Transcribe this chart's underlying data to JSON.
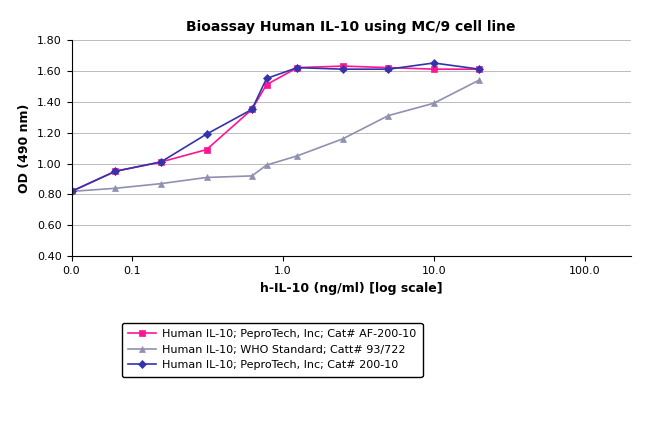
{
  "title": "Bioassay Human IL-10 using MC/9 cell line",
  "xlabel": "h-IL-10 (ng/ml) [log scale]",
  "ylabel": "OD (490 nm)",
  "ylim": [
    0.4,
    1.8
  ],
  "yticks": [
    0.4,
    0.6,
    0.8,
    1.0,
    1.2,
    1.4,
    1.6,
    1.8
  ],
  "xticks_pos": [
    0.04,
    0.1,
    1.0,
    10.0,
    100.0
  ],
  "xticks_labels": [
    "0.0",
    "0.1",
    "1.0",
    "10.0",
    "100.0"
  ],
  "xlim": [
    0.04,
    200.0
  ],
  "series": [
    {
      "label": "Human IL-10; PeproTech, Inc; Cat# AF-200-10",
      "color": "#FF1493",
      "marker": "s",
      "markersize": 5,
      "x": [
        0.04,
        0.078,
        0.156,
        0.313,
        0.625,
        0.781,
        1.25,
        2.5,
        5.0,
        10.0,
        20.0
      ],
      "y": [
        0.82,
        0.95,
        1.01,
        1.09,
        1.35,
        1.51,
        1.62,
        1.63,
        1.62,
        1.61,
        1.61
      ]
    },
    {
      "label": "Human IL-10; WHO Standard; Catt# 93/722",
      "color": "#9090B0",
      "marker": "^",
      "markersize": 5,
      "x": [
        0.04,
        0.078,
        0.156,
        0.313,
        0.625,
        0.781,
        1.25,
        2.5,
        5.0,
        10.0,
        20.0
      ],
      "y": [
        0.82,
        0.84,
        0.87,
        0.91,
        0.92,
        0.99,
        1.05,
        1.16,
        1.31,
        1.39,
        1.54
      ]
    },
    {
      "label": "Human IL-10; PeproTech, Inc; Cat# 200-10",
      "color": "#3333AA",
      "marker": "D",
      "markersize": 4,
      "x": [
        0.04,
        0.078,
        0.156,
        0.313,
        0.625,
        0.781,
        1.25,
        2.5,
        5.0,
        10.0,
        20.0
      ],
      "y": [
        0.82,
        0.95,
        1.01,
        1.19,
        1.35,
        1.55,
        1.62,
        1.61,
        1.61,
        1.65,
        1.61
      ]
    }
  ],
  "background_color": "#FFFFFF",
  "grid_color": "#BBBBBB",
  "title_fontsize": 10,
  "axis_fontsize": 9,
  "tick_fontsize": 8,
  "legend_fontsize": 8
}
